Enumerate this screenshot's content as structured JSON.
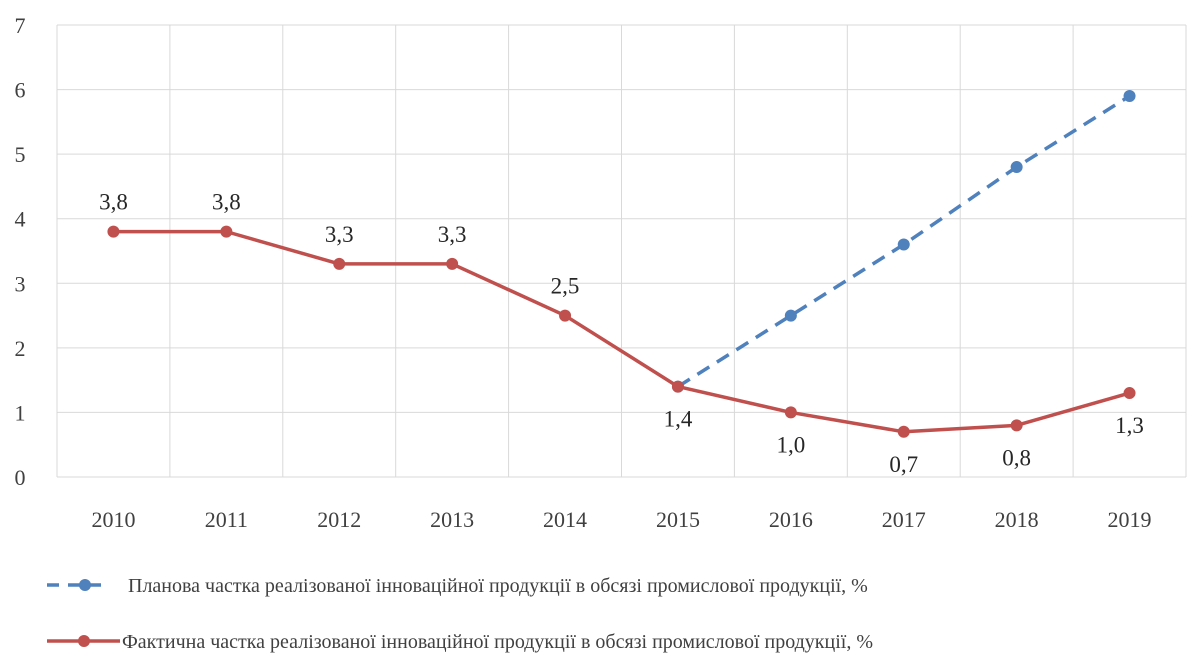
{
  "chart_data": {
    "type": "line",
    "categories": [
      "2010",
      "2011",
      "2012",
      "2013",
      "2014",
      "2015",
      "2016",
      "2017",
      "2018",
      "2019"
    ],
    "ylim": [
      0,
      7
    ],
    "y_ticks": [
      "0",
      "1",
      "2",
      "3",
      "4",
      "5",
      "6",
      "7"
    ],
    "grid": true,
    "legend_position": "bottom",
    "series": [
      {
        "name": "Планова частка реалізованої інноваційної продукції в обсязі промислової продукції, %",
        "color": "#4f81bd",
        "line_style": "dashed",
        "values": [
          null,
          null,
          null,
          null,
          null,
          1.4,
          2.5,
          3.6,
          4.8,
          5.9
        ],
        "labels": []
      },
      {
        "name": "Фактична частка реалізованої інноваційної продукції в обсязі промислової продукції, %",
        "color": "#c0504d",
        "line_style": "solid",
        "values": [
          3.8,
          3.8,
          3.3,
          3.3,
          2.5,
          1.4,
          1.0,
          0.7,
          0.8,
          1.3
        ],
        "labels": [
          "3,8",
          "3,8",
          "3,3",
          "3,3",
          "2,5",
          "1,4",
          "1,0",
          "0,7",
          "0,8",
          "1,3"
        ]
      }
    ]
  }
}
